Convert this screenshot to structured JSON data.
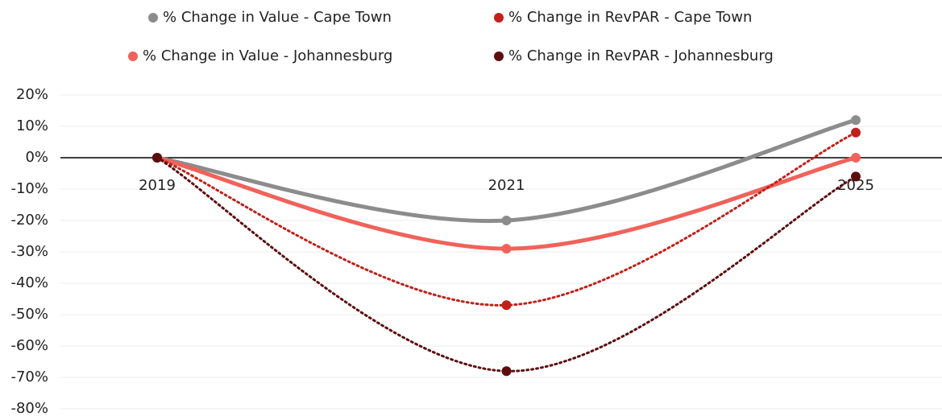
{
  "chart_data": {
    "type": "line",
    "categories": [
      "2019",
      "2021",
      "2025"
    ],
    "series": [
      {
        "name": "% Change in Value - Cape Town",
        "color": "#8c8c8c",
        "line_style": "solid",
        "values": [
          0,
          -20,
          12
        ]
      },
      {
        "name": "% Change in RevPAR - Cape Town",
        "color": "#c0201a",
        "line_style": "dotted",
        "values": [
          0,
          -47,
          8
        ]
      },
      {
        "name": "% Change in Value - Johannesburg",
        "color": "#f0625a",
        "line_style": "solid",
        "values": [
          0,
          -29,
          0
        ]
      },
      {
        "name": "% Change in RevPAR - Johannesburg",
        "color": "#5c0e0e",
        "line_style": "dotted",
        "values": [
          0,
          -68,
          -6
        ]
      }
    ],
    "ylim": [
      -80,
      20
    ],
    "yticks": [
      {
        "value": 20,
        "label": "20%"
      },
      {
        "value": 10,
        "label": "10%"
      },
      {
        "value": 0,
        "label": "0%"
      },
      {
        "value": -10,
        "label": "-10%"
      },
      {
        "value": -20,
        "label": "-20%"
      },
      {
        "value": -30,
        "label": "-30%"
      },
      {
        "value": -40,
        "label": "-40%"
      },
      {
        "value": -50,
        "label": "-50%"
      },
      {
        "value": -60,
        "label": "-60%"
      },
      {
        "value": -70,
        "label": "-70%"
      },
      {
        "value": -80,
        "label": "-80%"
      }
    ],
    "grid": true,
    "legend": "top"
  }
}
